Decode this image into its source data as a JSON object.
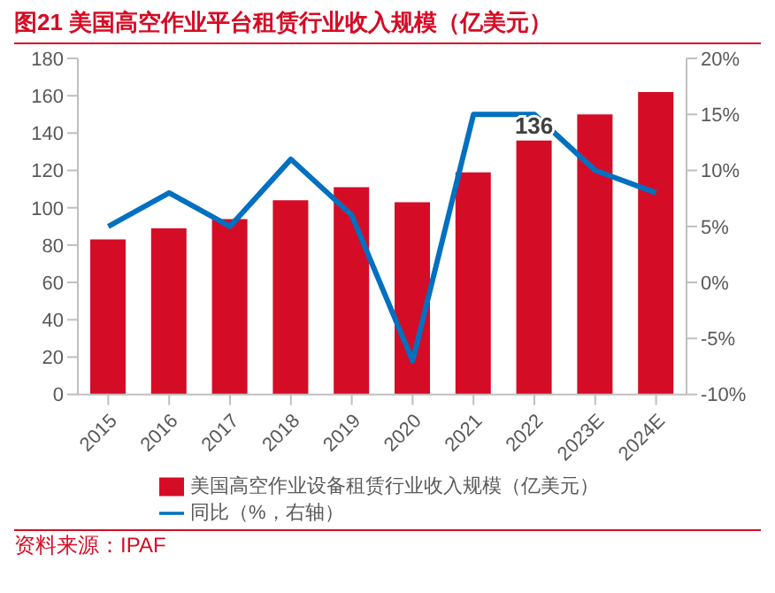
{
  "chart_data": {
    "type": "bar",
    "title": "图21  美国高空作业平台租赁行业收入规模（亿美元）",
    "categories": [
      "2015",
      "2016",
      "2017",
      "2018",
      "2019",
      "2020",
      "2021",
      "2022",
      "2023E",
      "2024E"
    ],
    "series": [
      {
        "name": "美国高空作业设备租赁行业收入规模（亿美元）",
        "color": "#d50c25",
        "values": [
          83,
          89,
          94,
          104,
          111,
          103,
          119,
          136,
          150,
          162
        ],
        "value_labels": [
          null,
          null,
          null,
          null,
          null,
          null,
          null,
          "136",
          null,
          null
        ]
      },
      {
        "name": "同比（%，右轴）",
        "type": "line",
        "axis": "y2",
        "color": "#0070c0",
        "values": [
          5,
          8,
          5,
          11,
          6,
          -7,
          15,
          15,
          10,
          8
        ]
      }
    ],
    "ylim": [
      0,
      180
    ],
    "yticks": [
      0,
      20,
      40,
      60,
      80,
      100,
      120,
      140,
      160,
      180
    ],
    "y2lim": [
      -10,
      20
    ],
    "y2ticks": [
      {
        "value": -10,
        "label": "-10%"
      },
      {
        "value": -5,
        "label": "-5%"
      },
      {
        "value": 0,
        "label": "0%"
      },
      {
        "value": 5,
        "label": "5%"
      },
      {
        "value": 10,
        "label": "10%"
      },
      {
        "value": 15,
        "label": "15%"
      },
      {
        "value": 20,
        "label": "20%"
      }
    ],
    "grid": false,
    "legend": "bottom",
    "marker": "none",
    "line_style": "solid",
    "annotations": [
      "资料来源：IPAF"
    ]
  }
}
